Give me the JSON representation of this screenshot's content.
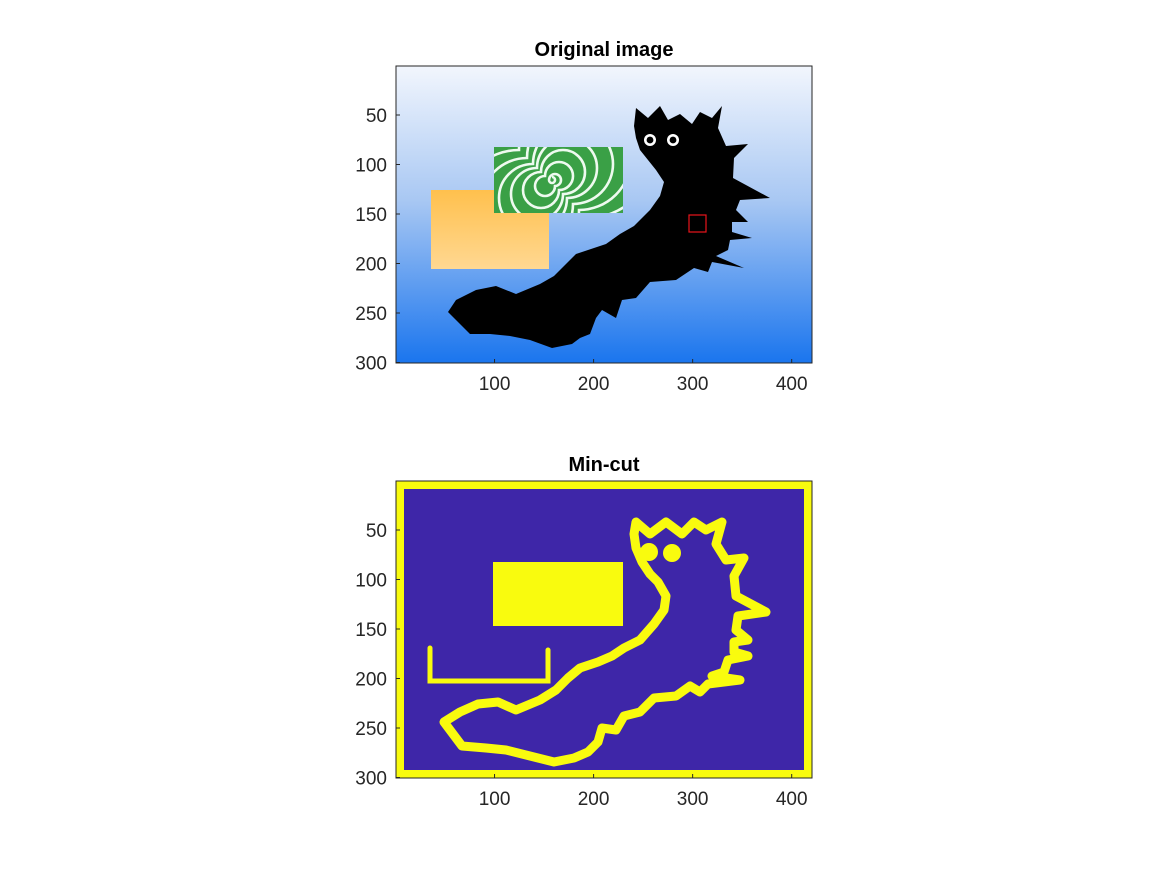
{
  "chart_data": [
    {
      "type": "image",
      "title": "Original image",
      "xticks": [
        100,
        200,
        300,
        400
      ],
      "yticks": [
        50,
        100,
        150,
        200,
        250,
        300
      ],
      "xlim": [
        0.5,
        420.5
      ],
      "ylim": [
        0.5,
        300.5
      ],
      "y_direction": "reversed",
      "background_gradient": [
        "#f2f6fd",
        "#1a75ee"
      ],
      "regions": [
        {
          "name": "orange-rectangle",
          "x": [
            36,
            155
          ],
          "y": [
            126,
            206
          ],
          "colors": [
            "#ffc04d",
            "#ffd78e"
          ]
        },
        {
          "name": "green-spiral-rectangle",
          "x": [
            100,
            230
          ],
          "y": [
            83,
            150
          ],
          "colors": [
            "#2f9a3a",
            "#ffffff"
          ]
        },
        {
          "name": "black-caterpillar",
          "color": "#000000"
        }
      ],
      "marker": {
        "name": "selection-box",
        "x": [
          296,
          313
        ],
        "y": [
          151,
          168
        ],
        "color": "#e8141c"
      }
    },
    {
      "type": "image",
      "title": "Min-cut",
      "xticks": [
        100,
        200,
        300,
        400
      ],
      "yticks": [
        50,
        100,
        150,
        200,
        250,
        300
      ],
      "xlim": [
        0.5,
        420.5
      ],
      "ylim": [
        0.5,
        300.5
      ],
      "y_direction": "reversed",
      "colormap": [
        "#3e26a8",
        "#f9fb0e"
      ],
      "segments": [
        {
          "name": "image-border"
        },
        {
          "name": "spiral-block",
          "x": [
            98,
            230
          ],
          "y": [
            78,
            145
          ]
        },
        {
          "name": "orange-outline",
          "x": [
            33,
            155
          ],
          "y": [
            166,
            205
          ]
        },
        {
          "name": "caterpillar-outline"
        }
      ]
    }
  ]
}
